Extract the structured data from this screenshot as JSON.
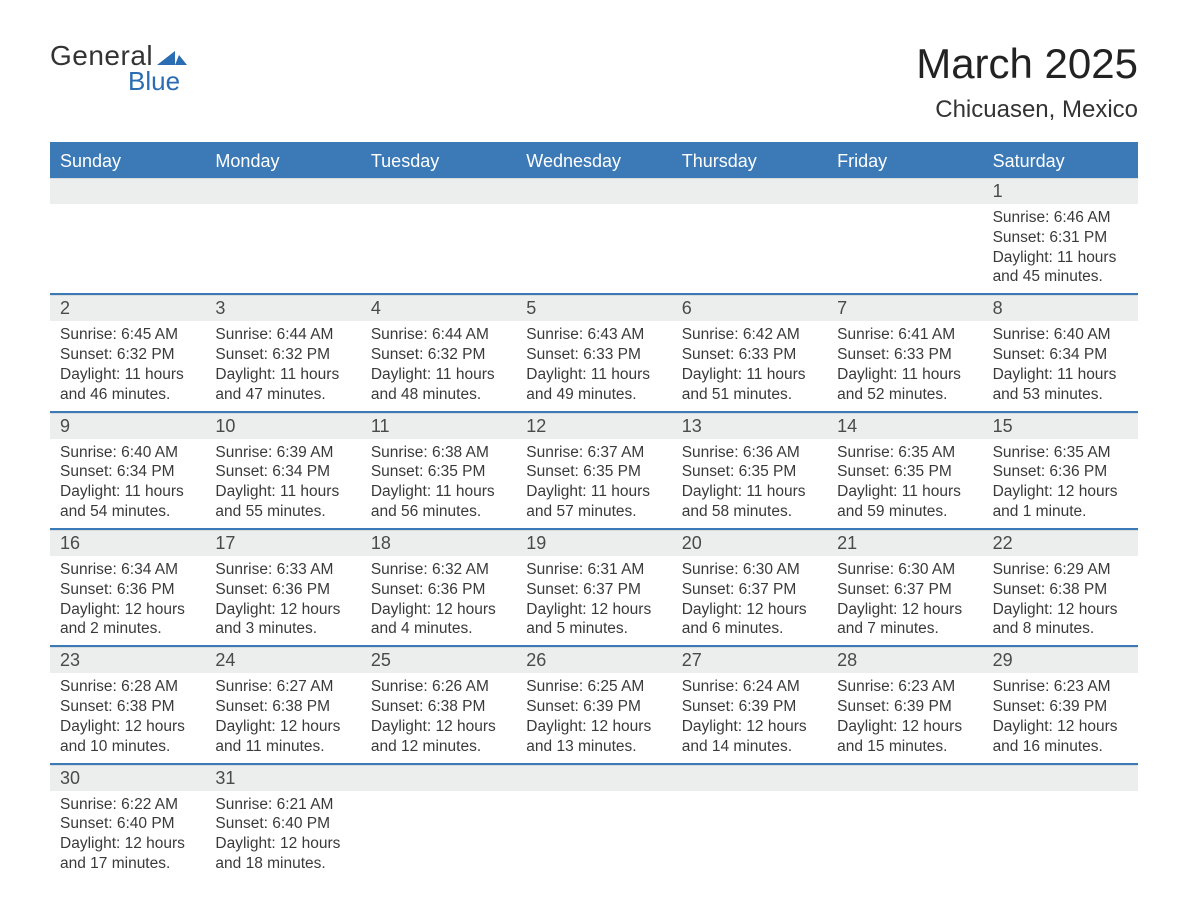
{
  "logo": {
    "text_general": "General",
    "text_blue": "Blue",
    "mark_color": "#2a6db2"
  },
  "title": "March 2025",
  "location": "Chicuasen, Mexico",
  "colors": {
    "header_bar": "#3b79b7",
    "daynum_bg": "#eceeee",
    "text": "#3a3a3a",
    "title_text": "#222222"
  },
  "days_of_week": [
    "Sunday",
    "Monday",
    "Tuesday",
    "Wednesday",
    "Thursday",
    "Friday",
    "Saturday"
  ],
  "weeks": [
    [
      null,
      null,
      null,
      null,
      null,
      null,
      {
        "n": "1",
        "sunrise": "6:46 AM",
        "sunset": "6:31 PM",
        "daylight": "11 hours and 45 minutes."
      }
    ],
    [
      {
        "n": "2",
        "sunrise": "6:45 AM",
        "sunset": "6:32 PM",
        "daylight": "11 hours and 46 minutes."
      },
      {
        "n": "3",
        "sunrise": "6:44 AM",
        "sunset": "6:32 PM",
        "daylight": "11 hours and 47 minutes."
      },
      {
        "n": "4",
        "sunrise": "6:44 AM",
        "sunset": "6:32 PM",
        "daylight": "11 hours and 48 minutes."
      },
      {
        "n": "5",
        "sunrise": "6:43 AM",
        "sunset": "6:33 PM",
        "daylight": "11 hours and 49 minutes."
      },
      {
        "n": "6",
        "sunrise": "6:42 AM",
        "sunset": "6:33 PM",
        "daylight": "11 hours and 51 minutes."
      },
      {
        "n": "7",
        "sunrise": "6:41 AM",
        "sunset": "6:33 PM",
        "daylight": "11 hours and 52 minutes."
      },
      {
        "n": "8",
        "sunrise": "6:40 AM",
        "sunset": "6:34 PM",
        "daylight": "11 hours and 53 minutes."
      }
    ],
    [
      {
        "n": "9",
        "sunrise": "6:40 AM",
        "sunset": "6:34 PM",
        "daylight": "11 hours and 54 minutes."
      },
      {
        "n": "10",
        "sunrise": "6:39 AM",
        "sunset": "6:34 PM",
        "daylight": "11 hours and 55 minutes."
      },
      {
        "n": "11",
        "sunrise": "6:38 AM",
        "sunset": "6:35 PM",
        "daylight": "11 hours and 56 minutes."
      },
      {
        "n": "12",
        "sunrise": "6:37 AM",
        "sunset": "6:35 PM",
        "daylight": "11 hours and 57 minutes."
      },
      {
        "n": "13",
        "sunrise": "6:36 AM",
        "sunset": "6:35 PM",
        "daylight": "11 hours and 58 minutes."
      },
      {
        "n": "14",
        "sunrise": "6:35 AM",
        "sunset": "6:35 PM",
        "daylight": "11 hours and 59 minutes."
      },
      {
        "n": "15",
        "sunrise": "6:35 AM",
        "sunset": "6:36 PM",
        "daylight": "12 hours and 1 minute."
      }
    ],
    [
      {
        "n": "16",
        "sunrise": "6:34 AM",
        "sunset": "6:36 PM",
        "daylight": "12 hours and 2 minutes."
      },
      {
        "n": "17",
        "sunrise": "6:33 AM",
        "sunset": "6:36 PM",
        "daylight": "12 hours and 3 minutes."
      },
      {
        "n": "18",
        "sunrise": "6:32 AM",
        "sunset": "6:36 PM",
        "daylight": "12 hours and 4 minutes."
      },
      {
        "n": "19",
        "sunrise": "6:31 AM",
        "sunset": "6:37 PM",
        "daylight": "12 hours and 5 minutes."
      },
      {
        "n": "20",
        "sunrise": "6:30 AM",
        "sunset": "6:37 PM",
        "daylight": "12 hours and 6 minutes."
      },
      {
        "n": "21",
        "sunrise": "6:30 AM",
        "sunset": "6:37 PM",
        "daylight": "12 hours and 7 minutes."
      },
      {
        "n": "22",
        "sunrise": "6:29 AM",
        "sunset": "6:38 PM",
        "daylight": "12 hours and 8 minutes."
      }
    ],
    [
      {
        "n": "23",
        "sunrise": "6:28 AM",
        "sunset": "6:38 PM",
        "daylight": "12 hours and 10 minutes."
      },
      {
        "n": "24",
        "sunrise": "6:27 AM",
        "sunset": "6:38 PM",
        "daylight": "12 hours and 11 minutes."
      },
      {
        "n": "25",
        "sunrise": "6:26 AM",
        "sunset": "6:38 PM",
        "daylight": "12 hours and 12 minutes."
      },
      {
        "n": "26",
        "sunrise": "6:25 AM",
        "sunset": "6:39 PM",
        "daylight": "12 hours and 13 minutes."
      },
      {
        "n": "27",
        "sunrise": "6:24 AM",
        "sunset": "6:39 PM",
        "daylight": "12 hours and 14 minutes."
      },
      {
        "n": "28",
        "sunrise": "6:23 AM",
        "sunset": "6:39 PM",
        "daylight": "12 hours and 15 minutes."
      },
      {
        "n": "29",
        "sunrise": "6:23 AM",
        "sunset": "6:39 PM",
        "daylight": "12 hours and 16 minutes."
      }
    ],
    [
      {
        "n": "30",
        "sunrise": "6:22 AM",
        "sunset": "6:40 PM",
        "daylight": "12 hours and 17 minutes."
      },
      {
        "n": "31",
        "sunrise": "6:21 AM",
        "sunset": "6:40 PM",
        "daylight": "12 hours and 18 minutes."
      },
      null,
      null,
      null,
      null,
      null
    ]
  ],
  "labels": {
    "sunrise": "Sunrise:",
    "sunset": "Sunset:",
    "daylight": "Daylight:"
  }
}
